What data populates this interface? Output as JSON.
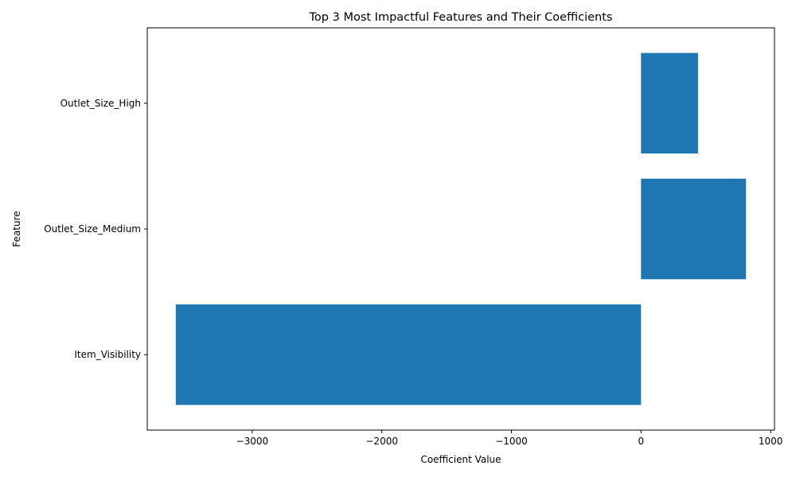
{
  "chart_data": {
    "type": "bar",
    "orientation": "horizontal",
    "title": "Top 3 Most Impactful Features and Their Coefficients",
    "xlabel": "Coefficient Value",
    "ylabel": "Feature",
    "categories": [
      "Item_Visibility",
      "Outlet_Size_Medium",
      "Outlet_Size_High"
    ],
    "values": [
      -3590,
      810,
      440
    ],
    "xlim": [
      -3810,
      1030
    ],
    "xticks": [
      -3000,
      -2000,
      -1000,
      0,
      1000
    ],
    "xtick_labels": [
      "−3000",
      "−2000",
      "−1000",
      "0",
      "1000"
    ],
    "bar_color": "#1f77b4",
    "grid": false,
    "legend": "none"
  }
}
